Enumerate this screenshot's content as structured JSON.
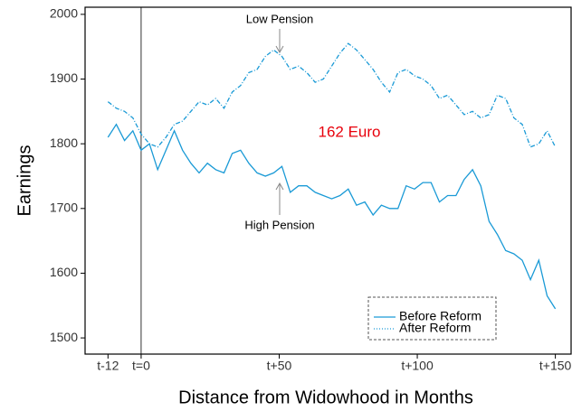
{
  "chart_data": {
    "type": "line",
    "xlabel": "Distance from Widowhood in Months",
    "ylabel": "Earnings",
    "x": [
      -12,
      -9,
      -6,
      -3,
      0,
      3,
      6,
      9,
      12,
      15,
      18,
      21,
      24,
      27,
      30,
      33,
      36,
      39,
      42,
      45,
      48,
      51,
      54,
      57,
      60,
      63,
      66,
      69,
      72,
      75,
      78,
      81,
      84,
      87,
      90,
      93,
      96,
      99,
      102,
      105,
      108,
      111,
      114,
      117,
      120,
      123,
      126,
      129,
      132,
      135,
      138,
      141,
      144,
      147,
      150
    ],
    "series": [
      {
        "name": "Before Reform",
        "color": "#1a9ad6",
        "linestyle": "solid",
        "values": [
          1810,
          1830,
          1805,
          1820,
          1790,
          1800,
          1760,
          1790,
          1820,
          1790,
          1770,
          1755,
          1770,
          1760,
          1755,
          1785,
          1790,
          1770,
          1755,
          1750,
          1755,
          1765,
          1725,
          1735,
          1735,
          1725,
          1720,
          1715,
          1720,
          1730,
          1705,
          1710,
          1690,
          1705,
          1700,
          1700,
          1735,
          1730,
          1740,
          1740,
          1710,
          1720,
          1720,
          1745,
          1760,
          1735,
          1680,
          1660,
          1635,
          1630,
          1620,
          1590,
          1620,
          1565,
          1545
        ]
      },
      {
        "name": "After Reform",
        "color": "#1a9ad6",
        "linestyle": "dashdot",
        "values": [
          1865,
          1855,
          1850,
          1840,
          1815,
          1800,
          1795,
          1810,
          1830,
          1835,
          1850,
          1865,
          1860,
          1870,
          1855,
          1880,
          1890,
          1910,
          1915,
          1935,
          1945,
          1935,
          1915,
          1920,
          1910,
          1895,
          1900,
          1920,
          1940,
          1955,
          1945,
          1930,
          1915,
          1895,
          1880,
          1910,
          1915,
          1905,
          1900,
          1890,
          1870,
          1875,
          1860,
          1845,
          1850,
          1840,
          1845,
          1875,
          1870,
          1840,
          1830,
          1795,
          1800,
          1820,
          1795
        ]
      }
    ],
    "xlim": [
      -20.3,
      155.7
    ],
    "ylim": [
      1475,
      2011
    ],
    "xticks": [
      {
        "value": -12,
        "label": "t-12"
      },
      {
        "value": 0,
        "label": "t=0"
      },
      {
        "value": 50,
        "label": "t+50"
      },
      {
        "value": 100,
        "label": "t+100"
      },
      {
        "value": 150,
        "label": "t+150"
      }
    ],
    "yticks": [
      1500,
      1600,
      1700,
      1800,
      1900,
      2000
    ],
    "vline": 0,
    "annotations": [
      "Low Pension",
      "High Pension",
      "162 Euro"
    ],
    "legend": "lower right"
  }
}
